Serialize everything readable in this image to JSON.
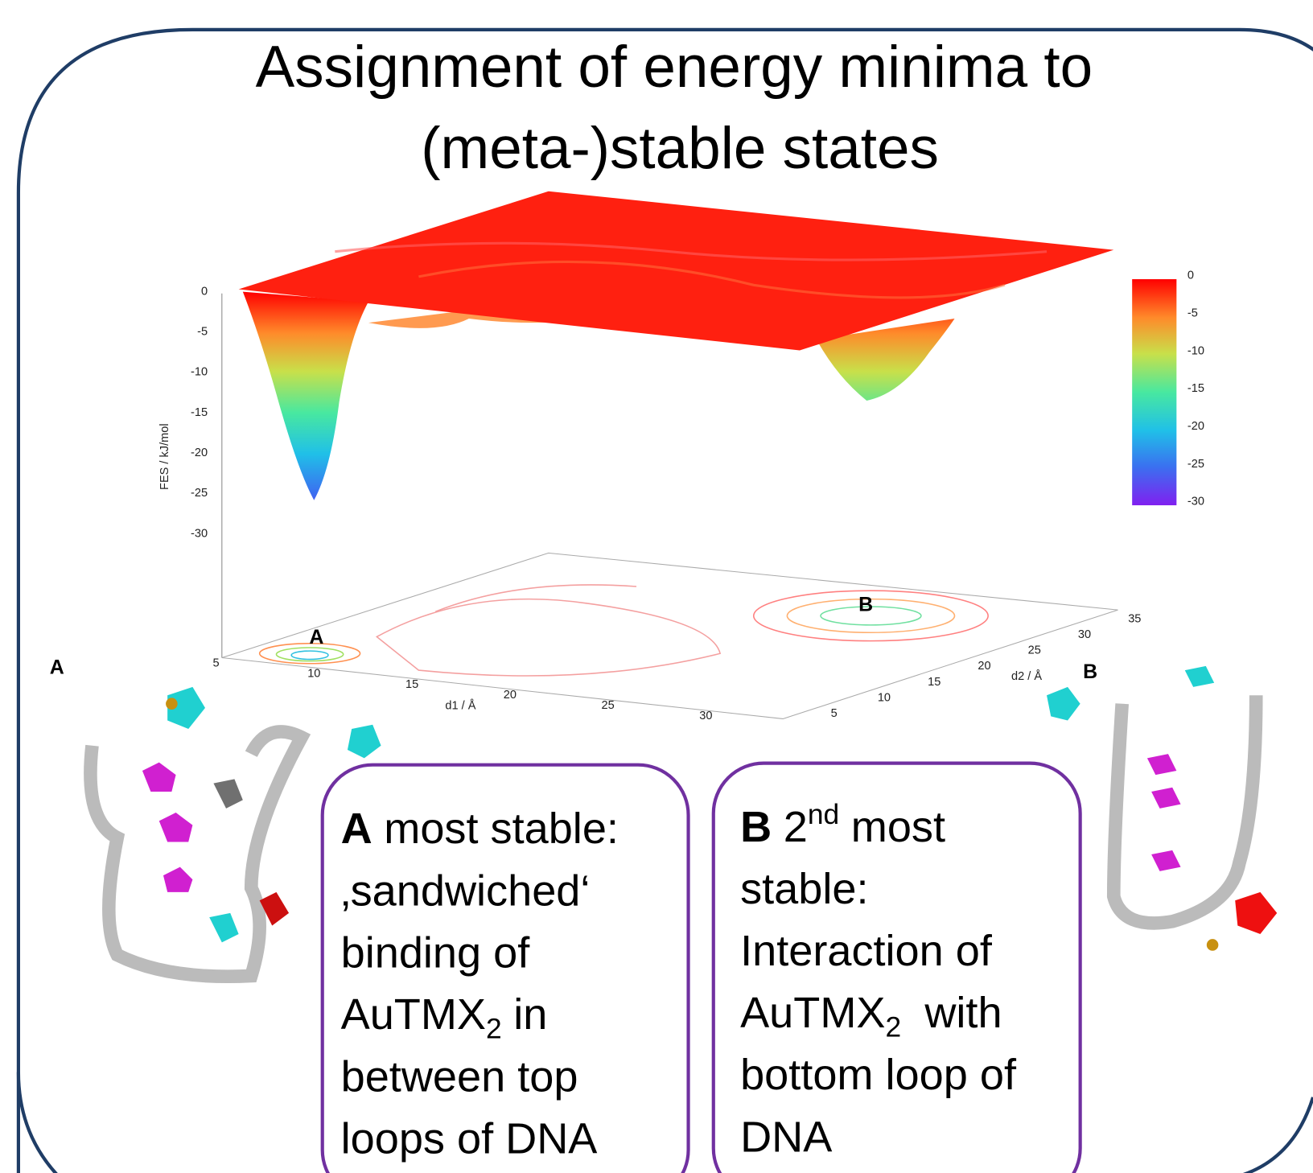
{
  "title": {
    "line1": "Assignment of energy minima to",
    "line2": "(meta-)stable states"
  },
  "plot": {
    "z_axis_label": "FES / kJ/mol",
    "d1_label": "d1 / Å",
    "d2_label": "d2 / Å",
    "z_ticks": [
      0,
      -5,
      -10,
      -15,
      -20,
      -25,
      -30
    ],
    "colorbar_ticks": [
      0,
      -5,
      -10,
      -15,
      -20,
      -25,
      -30
    ],
    "d1_ticks": [
      5,
      10,
      15,
      20,
      25,
      30
    ],
    "d2_ticks": [
      5,
      10,
      15,
      20,
      25,
      30,
      35
    ],
    "minimum_a": "A",
    "minimum_b": "B"
  },
  "structures": {
    "a": "A",
    "b": "B"
  },
  "box_a": {
    "label": "A",
    "line1": "most stable:",
    "line2": "‚sandwiched‘",
    "line3": "binding of",
    "formula": "AuTMX",
    "subscript": "2",
    "line4": "in",
    "line5": "between top",
    "line6": "loops of DNA"
  },
  "box_b": {
    "label": "B",
    "ordinal": "2",
    "superscript": "nd",
    "line1": "most",
    "line2": "stable:",
    "line3": "Interaction of",
    "formula": "AuTMX",
    "subscript": "2",
    "line4": "with",
    "line5": "bottom loop of",
    "line6": "DNA"
  }
}
